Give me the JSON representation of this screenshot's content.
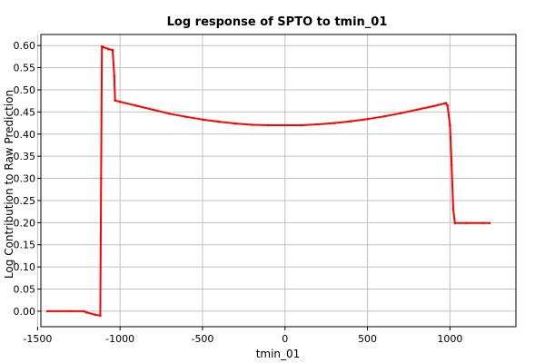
{
  "chart_data": {
    "type": "line",
    "title": "Log response of SPTO to tmin_01",
    "xlabel": "tmin_01",
    "ylabel": "Log Contribution to Raw Prediction",
    "xlim": [
      -1480,
      1400
    ],
    "ylim": [
      -0.035,
      0.625
    ],
    "x_ticks": [
      -1500,
      -1000,
      -500,
      0,
      500,
      1000
    ],
    "y_ticks": [
      0.0,
      0.05,
      0.1,
      0.15,
      0.2,
      0.25,
      0.3,
      0.35,
      0.4,
      0.45,
      0.5,
      0.55,
      0.6
    ],
    "x_tick_labels": [
      "-1500",
      "-1000",
      "-500",
      "0",
      "500",
      "1000"
    ],
    "y_tick_labels": [
      "0.00",
      "0.05",
      "0.10",
      "0.15",
      "0.20",
      "0.25",
      "0.30",
      "0.35",
      "0.40",
      "0.45",
      "0.50",
      "0.55",
      "0.60"
    ],
    "grid": true,
    "series": [
      {
        "color": "#ff0000",
        "x": [
          -1440,
          -1300,
          -1220,
          -1200,
          -1150,
          -1120,
          -1115,
          -1110,
          -1100,
          -1070,
          -1045,
          -1035,
          -1030,
          -1000,
          -900,
          -800,
          -700,
          -600,
          -500,
          -400,
          -300,
          -200,
          -100,
          0,
          100,
          200,
          300,
          400,
          500,
          600,
          700,
          800,
          900,
          975,
          985,
          1000,
          1010,
          1020,
          1030,
          1100,
          1200,
          1240
        ],
        "y": [
          0.0,
          0.0,
          0.0,
          -0.003,
          -0.008,
          -0.01,
          0.3,
          0.598,
          0.596,
          0.592,
          0.59,
          0.53,
          0.476,
          0.473,
          0.464,
          0.455,
          0.446,
          0.439,
          0.433,
          0.428,
          0.424,
          0.421,
          0.42,
          0.42,
          0.42,
          0.422,
          0.425,
          0.429,
          0.434,
          0.44,
          0.447,
          0.455,
          0.463,
          0.47,
          0.465,
          0.42,
          0.33,
          0.23,
          0.199,
          0.199,
          0.199,
          0.199
        ]
      }
    ]
  }
}
